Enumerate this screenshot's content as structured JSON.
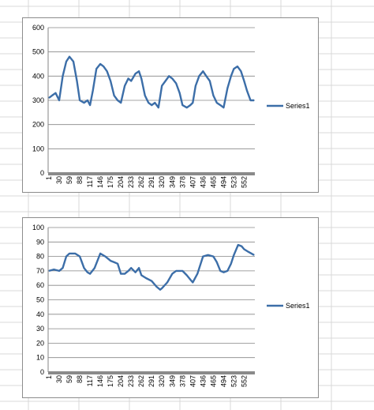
{
  "colors": {
    "series": "#3c6ea8",
    "gridline": "#868686",
    "axis": "#868686",
    "baseline_band": "#8a8a8a",
    "sheet_grid": "#d9d9d9"
  },
  "chart_data": [
    {
      "type": "line",
      "title": "",
      "xlabel": "",
      "ylabel": "",
      "ylim": [
        0,
        600
      ],
      "y_ticks": [
        "0",
        "100",
        "200",
        "300",
        "400",
        "500",
        "600"
      ],
      "x_tick_labels": [
        "1",
        "30",
        "59",
        "88",
        "117",
        "146",
        "175",
        "204",
        "233",
        "262",
        "291",
        "320",
        "349",
        "378",
        "407",
        "436",
        "465",
        "494",
        "523",
        "552"
      ],
      "x_count": 580,
      "grid": true,
      "legend_position": "right",
      "series": [
        {
          "name": "Series1",
          "x": [
            1,
            10,
            20,
            30,
            40,
            50,
            59,
            70,
            80,
            88,
            100,
            110,
            117,
            125,
            135,
            146,
            155,
            165,
            175,
            185,
            195,
            204,
            215,
            225,
            233,
            245,
            255,
            262,
            272,
            282,
            291,
            300,
            310,
            320,
            330,
            340,
            349,
            360,
            370,
            378,
            390,
            400,
            407,
            415,
            425,
            436,
            445,
            455,
            465,
            475,
            485,
            494,
            505,
            515,
            523,
            533,
            543,
            552,
            560,
            570,
            580
          ],
          "values": [
            310,
            320,
            330,
            300,
            400,
            460,
            480,
            460,
            380,
            300,
            290,
            300,
            280,
            340,
            430,
            450,
            440,
            420,
            380,
            320,
            300,
            290,
            360,
            390,
            380,
            410,
            420,
            390,
            320,
            290,
            280,
            290,
            270,
            360,
            380,
            400,
            390,
            370,
            330,
            280,
            270,
            280,
            290,
            360,
            400,
            420,
            400,
            380,
            320,
            290,
            280,
            270,
            350,
            400,
            430,
            440,
            420,
            380,
            340,
            300,
            300
          ]
        }
      ]
    },
    {
      "type": "line",
      "title": "",
      "xlabel": "",
      "ylabel": "",
      "ylim": [
        0,
        100
      ],
      "y_ticks": [
        "0",
        "10",
        "20",
        "30",
        "40",
        "50",
        "60",
        "70",
        "80",
        "90",
        "100"
      ],
      "x_tick_labels": [
        "1",
        "30",
        "59",
        "88",
        "117",
        "146",
        "175",
        "204",
        "233",
        "262",
        "291",
        "320",
        "349",
        "378",
        "407",
        "436",
        "465",
        "494",
        "523",
        "552"
      ],
      "x_count": 580,
      "grid": true,
      "legend_position": "right",
      "series": [
        {
          "name": "Series1",
          "x": [
            1,
            15,
            30,
            40,
            50,
            59,
            75,
            88,
            100,
            110,
            117,
            130,
            146,
            160,
            175,
            185,
            195,
            204,
            215,
            225,
            233,
            245,
            255,
            262,
            275,
            291,
            305,
            315,
            320,
            335,
            349,
            360,
            370,
            378,
            390,
            400,
            407,
            420,
            436,
            450,
            465,
            475,
            485,
            494,
            505,
            515,
            523,
            535,
            545,
            552,
            565,
            580
          ],
          "values": [
            70,
            71,
            70,
            72,
            80,
            82,
            82,
            80,
            72,
            69,
            68,
            72,
            82,
            80,
            77,
            76,
            75,
            68,
            68,
            70,
            72,
            69,
            72,
            67,
            65,
            63,
            59,
            57,
            58,
            62,
            68,
            70,
            70,
            70,
            67,
            64,
            62,
            68,
            80,
            81,
            80,
            76,
            70,
            69,
            70,
            75,
            81,
            88,
            87,
            85,
            83,
            81
          ]
        }
      ]
    }
  ]
}
